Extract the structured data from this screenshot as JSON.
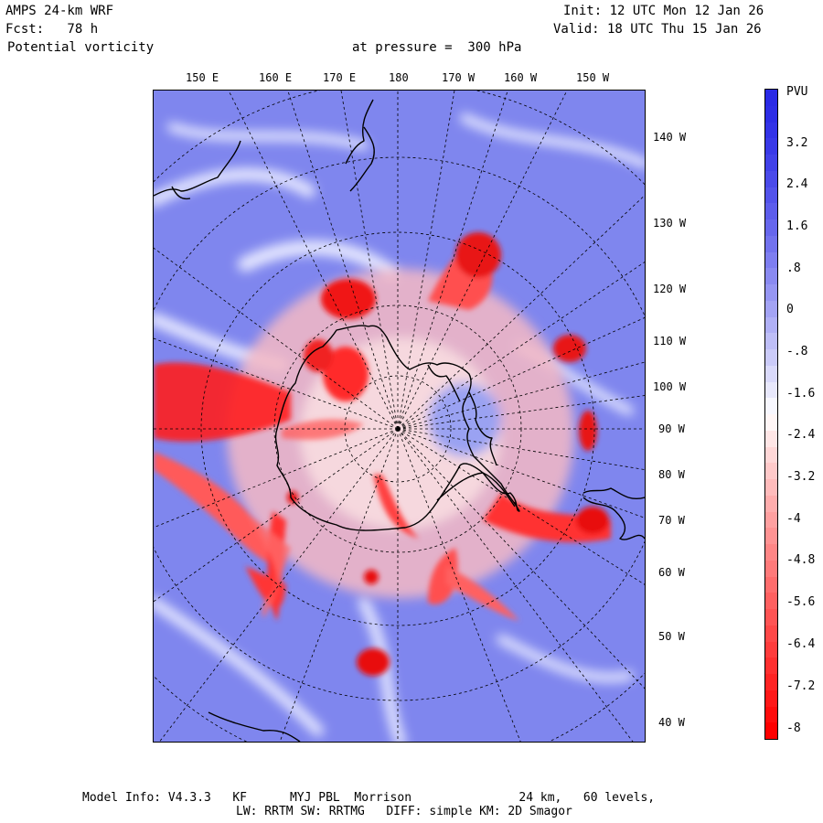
{
  "header": {
    "model": "AMPS 24-km WRF",
    "fcst": "Fcst:   78 h",
    "field": "Potential vorticity",
    "pressure": "at pressure =  300 hPa",
    "init": "Init: 12 UTC Mon 12 Jan 26",
    "valid": "Valid: 18 UTC Thu 15 Jan 26"
  },
  "top_lon_labels": [
    "150 E",
    "160 E",
    "170 E",
    "180",
    "170 W",
    "160 W",
    "150 W"
  ],
  "right_lon_labels": [
    "140 W",
    "130 W",
    "120 W",
    "110 W",
    "100 W",
    "90 W",
    "80 W",
    "70 W",
    "60 W",
    "50 W",
    "40 W"
  ],
  "colorbar": {
    "unit": "PVU",
    "labels": [
      "3.2",
      "2.4",
      "1.6",
      ".8",
      "0",
      "-.8",
      "-1.6",
      "-2.4",
      "-3.2",
      "-4",
      "-4.8",
      "-5.6",
      "-6.4",
      "-7.2",
      "-8"
    ],
    "colors": {
      "positive": "#2a2ae6",
      "zero": "#ffffff",
      "negative": "#ff0000"
    }
  },
  "footer": {
    "line1": "Model Info: V4.3.3   KF      MYJ PBL  Morrison               24 km,   60 levels,",
    "line2": "LW: RRTM SW: RRTMG   DIFF: simple KM: 2D Smagor"
  }
}
